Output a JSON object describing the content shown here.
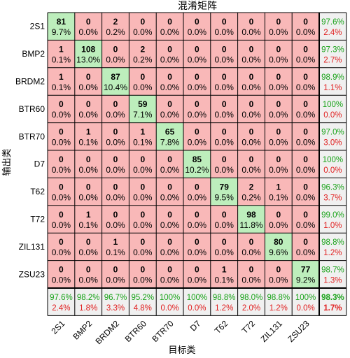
{
  "chart_data": {
    "type": "heatmap",
    "title": "混淆矩阵",
    "xlabel": "目标类",
    "ylabel": "输出类",
    "classes": [
      "2S1",
      "BMP2",
      "BRDM2",
      "BTR60",
      "BTR70",
      "D7",
      "T62",
      "T72",
      "ZIL131",
      "ZSU23"
    ],
    "cells": [
      [
        {
          "c": "81",
          "p": "9.7%"
        },
        {
          "c": "0",
          "p": "0.0%"
        },
        {
          "c": "2",
          "p": "0.2%"
        },
        {
          "c": "0",
          "p": "0.0%"
        },
        {
          "c": "0",
          "p": "0.0%"
        },
        {
          "c": "0",
          "p": "0.0%"
        },
        {
          "c": "0",
          "p": "0.0%"
        },
        {
          "c": "0",
          "p": "0.0%"
        },
        {
          "c": "0",
          "p": "0.0%"
        },
        {
          "c": "0",
          "p": "0.0%"
        }
      ],
      [
        {
          "c": "1",
          "p": "0.1%"
        },
        {
          "c": "108",
          "p": "13.0%"
        },
        {
          "c": "0",
          "p": "0.0%"
        },
        {
          "c": "2",
          "p": "0.2%"
        },
        {
          "c": "0",
          "p": "0.0%"
        },
        {
          "c": "0",
          "p": "0.0%"
        },
        {
          "c": "0",
          "p": "0.0%"
        },
        {
          "c": "0",
          "p": "0.0%"
        },
        {
          "c": "0",
          "p": "0.0%"
        },
        {
          "c": "0",
          "p": "0.0%"
        }
      ],
      [
        {
          "c": "1",
          "p": "0.1%"
        },
        {
          "c": "0",
          "p": "0.0%"
        },
        {
          "c": "87",
          "p": "10.4%"
        },
        {
          "c": "0",
          "p": "0.0%"
        },
        {
          "c": "0",
          "p": "0.0%"
        },
        {
          "c": "0",
          "p": "0.0%"
        },
        {
          "c": "0",
          "p": "0.0%"
        },
        {
          "c": "0",
          "p": "0.0%"
        },
        {
          "c": "0",
          "p": "0.0%"
        },
        {
          "c": "0",
          "p": "0.0%"
        }
      ],
      [
        {
          "c": "0",
          "p": "0.0%"
        },
        {
          "c": "0",
          "p": "0.0%"
        },
        {
          "c": "0",
          "p": "0.0%"
        },
        {
          "c": "59",
          "p": "7.1%"
        },
        {
          "c": "0",
          "p": "0.0%"
        },
        {
          "c": "0",
          "p": "0.0%"
        },
        {
          "c": "0",
          "p": "0.0%"
        },
        {
          "c": "0",
          "p": "0.0%"
        },
        {
          "c": "0",
          "p": "0.0%"
        },
        {
          "c": "0",
          "p": "0.0%"
        }
      ],
      [
        {
          "c": "0",
          "p": "0.0%"
        },
        {
          "c": "1",
          "p": "0.1%"
        },
        {
          "c": "0",
          "p": "0.0%"
        },
        {
          "c": "1",
          "p": "0.1%"
        },
        {
          "c": "65",
          "p": "7.8%"
        },
        {
          "c": "0",
          "p": "0.0%"
        },
        {
          "c": "0",
          "p": "0.0%"
        },
        {
          "c": "0",
          "p": "0.0%"
        },
        {
          "c": "0",
          "p": "0.0%"
        },
        {
          "c": "0",
          "p": "0.0%"
        }
      ],
      [
        {
          "c": "0",
          "p": "0.0%"
        },
        {
          "c": "0",
          "p": "0.0%"
        },
        {
          "c": "0",
          "p": "0.0%"
        },
        {
          "c": "0",
          "p": "0.0%"
        },
        {
          "c": "0",
          "p": "0.0%"
        },
        {
          "c": "85",
          "p": "10.2%"
        },
        {
          "c": "0",
          "p": "0.0%"
        },
        {
          "c": "0",
          "p": "0.0%"
        },
        {
          "c": "0",
          "p": "0.0%"
        },
        {
          "c": "0",
          "p": "0.0%"
        }
      ],
      [
        {
          "c": "0",
          "p": "0.0%"
        },
        {
          "c": "0",
          "p": "0.0%"
        },
        {
          "c": "0",
          "p": "0.0%"
        },
        {
          "c": "0",
          "p": "0.0%"
        },
        {
          "c": "0",
          "p": "0.0%"
        },
        {
          "c": "0",
          "p": "0.0%"
        },
        {
          "c": "79",
          "p": "9.5%"
        },
        {
          "c": "2",
          "p": "0.2%"
        },
        {
          "c": "1",
          "p": "0.1%"
        },
        {
          "c": "0",
          "p": "0.0%"
        }
      ],
      [
        {
          "c": "0",
          "p": "0.0%"
        },
        {
          "c": "1",
          "p": "0.1%"
        },
        {
          "c": "0",
          "p": "0.0%"
        },
        {
          "c": "0",
          "p": "0.0%"
        },
        {
          "c": "0",
          "p": "0.0%"
        },
        {
          "c": "0",
          "p": "0.0%"
        },
        {
          "c": "0",
          "p": "0.0%"
        },
        {
          "c": "98",
          "p": "11.8%"
        },
        {
          "c": "0",
          "p": "0.0%"
        },
        {
          "c": "0",
          "p": "0.0%"
        }
      ],
      [
        {
          "c": "0",
          "p": "0.0%"
        },
        {
          "c": "0",
          "p": "0.0%"
        },
        {
          "c": "1",
          "p": "0.1%"
        },
        {
          "c": "0",
          "p": "0.0%"
        },
        {
          "c": "0",
          "p": "0.0%"
        },
        {
          "c": "0",
          "p": "0.0%"
        },
        {
          "c": "0",
          "p": "0.0%"
        },
        {
          "c": "0",
          "p": "0.0%"
        },
        {
          "c": "80",
          "p": "9.6%"
        },
        {
          "c": "0",
          "p": "0.0%"
        }
      ],
      [
        {
          "c": "0",
          "p": "0.0%"
        },
        {
          "c": "0",
          "p": "0.0%"
        },
        {
          "c": "0",
          "p": "0.0%"
        },
        {
          "c": "0",
          "p": "0.0%"
        },
        {
          "c": "0",
          "p": "0.0%"
        },
        {
          "c": "0",
          "p": "0.0%"
        },
        {
          "c": "1",
          "p": "0.1%"
        },
        {
          "c": "0",
          "p": "0.0%"
        },
        {
          "c": "0",
          "p": "0.0%"
        },
        {
          "c": "77",
          "p": "9.2%"
        }
      ]
    ],
    "row_summary": [
      {
        "good": "97.6%",
        "bad": "2.4%"
      },
      {
        "good": "97.3%",
        "bad": "2.7%"
      },
      {
        "good": "98.9%",
        "bad": "1.1%"
      },
      {
        "good": "100%",
        "bad": "0.0%"
      },
      {
        "good": "97.0%",
        "bad": "3.0%"
      },
      {
        "good": "100%",
        "bad": "0.0%"
      },
      {
        "good": "96.3%",
        "bad": "3.7%"
      },
      {
        "good": "99.0%",
        "bad": "1.0%"
      },
      {
        "good": "98.8%",
        "bad": "1.2%"
      },
      {
        "good": "98.7%",
        "bad": "1.3%"
      }
    ],
    "col_summary": [
      {
        "good": "97.6%",
        "bad": "2.4%"
      },
      {
        "good": "98.2%",
        "bad": "1.8%"
      },
      {
        "good": "96.7%",
        "bad": "3.3%"
      },
      {
        "good": "95.2%",
        "bad": "4.8%"
      },
      {
        "good": "100%",
        "bad": "0.0%"
      },
      {
        "good": "100%",
        "bad": "0.0%"
      },
      {
        "good": "98.8%",
        "bad": "1.2%"
      },
      {
        "good": "98.0%",
        "bad": "2.0%"
      },
      {
        "good": "98.8%",
        "bad": "1.2%"
      },
      {
        "good": "100%",
        "bad": "0.0%"
      }
    ],
    "overall": {
      "good": "98.3%",
      "bad": "1.7%"
    },
    "colors": {
      "correct_cell": "#bdeebc",
      "incorrect_cell": "#f9b8b8",
      "summary_cell": "#f0f0f0",
      "good_text": "#19a319",
      "bad_text": "#e02020",
      "grid": "#000000"
    }
  }
}
